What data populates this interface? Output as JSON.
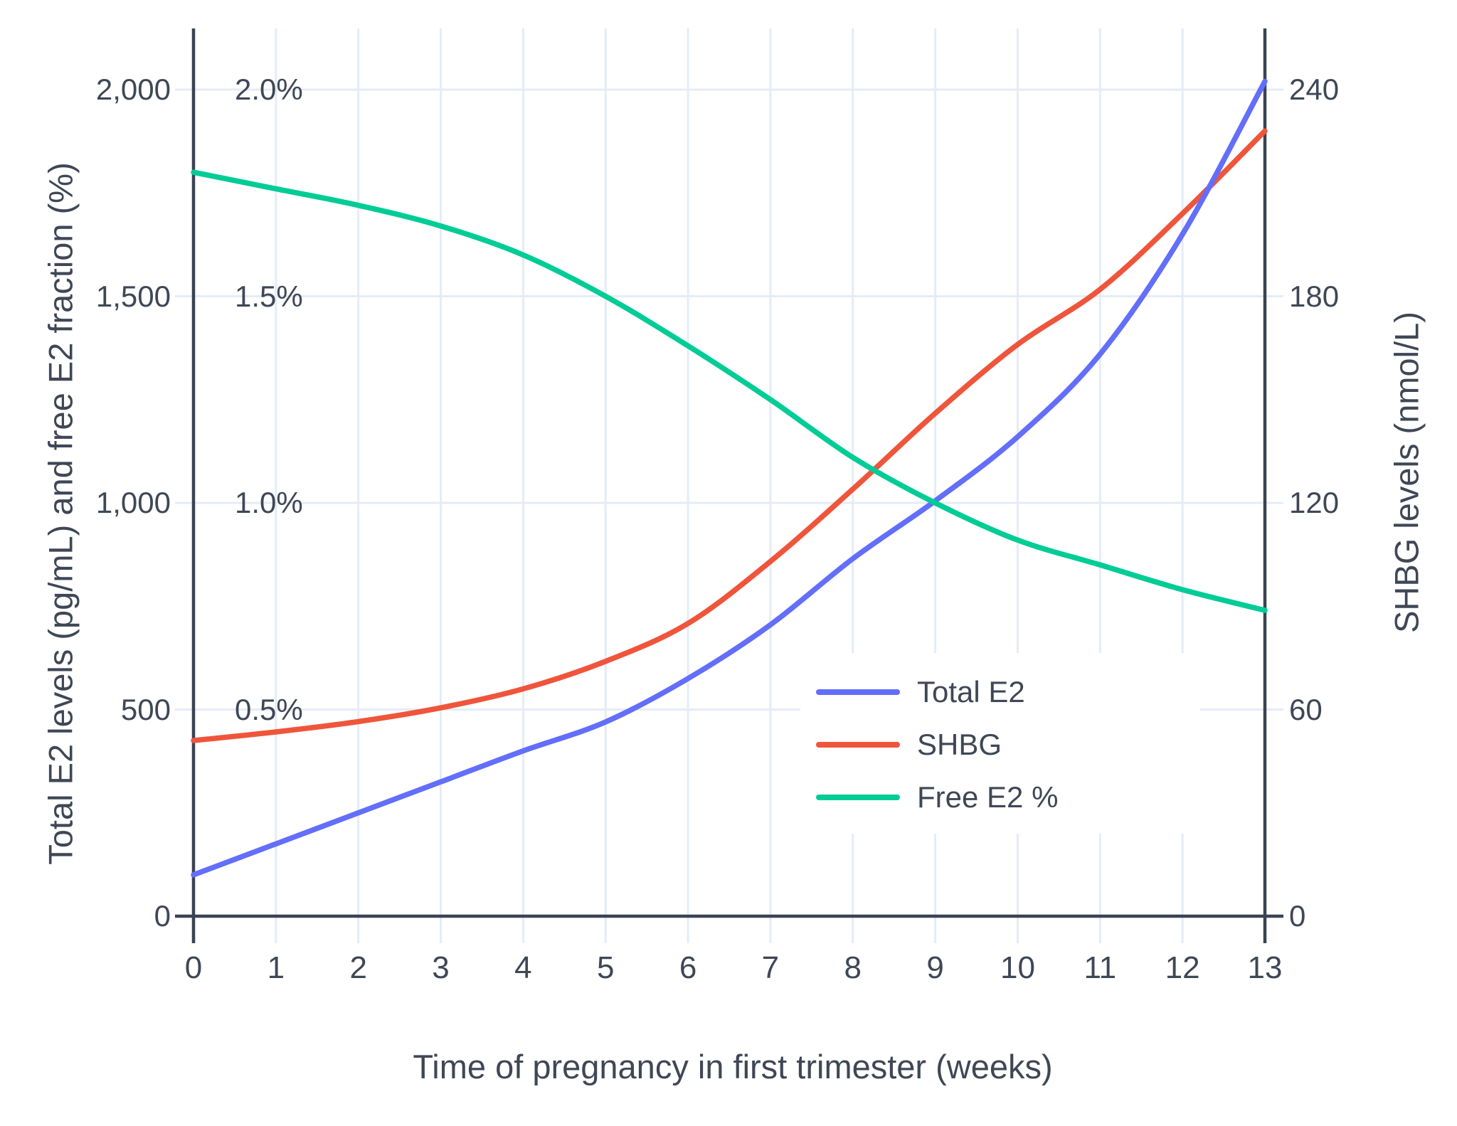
{
  "chart_data": {
    "type": "line",
    "title": "",
    "x": [
      0,
      1,
      2,
      3,
      4,
      5,
      6,
      7,
      8,
      9,
      10,
      11,
      12,
      13
    ],
    "xlabel": "Time of pregnancy in first trimester (weeks)",
    "series": [
      {
        "name": "Total E2",
        "units": "pg/mL",
        "axis": "left",
        "color": "#636EFA",
        "values": [
          100,
          175,
          250,
          325,
          400,
          470,
          575,
          705,
          865,
          1005,
          1160,
          1360,
          1650,
          2020
        ]
      },
      {
        "name": "SHBG",
        "units": "nmol/L",
        "axis": "right",
        "color": "#EF553B",
        "values": [
          51,
          53.5,
          56.5,
          60.5,
          66,
          74,
          85,
          103,
          124,
          146,
          166,
          182,
          204,
          228
        ]
      },
      {
        "name": "Free E2 %",
        "units": "%",
        "axis": "left_percent",
        "color": "#00CC96",
        "values": [
          1.8,
          1.76,
          1.72,
          1.67,
          1.6,
          1.5,
          1.38,
          1.25,
          1.11,
          1.0,
          0.91,
          0.85,
          0.79,
          0.74
        ]
      }
    ],
    "layout_hints": {
      "grid": true,
      "legend_position": "inside-right-middle",
      "left_range": [
        0,
        2000
      ],
      "right_range": [
        0,
        240
      ],
      "percent_range": [
        0,
        2.0
      ],
      "draw_order": [
        "SHBG",
        "Total E2",
        "Free E2 %"
      ]
    }
  },
  "axes": {
    "left": {
      "title": "Total E2 levels (pg/mL) and free E2 fraction (%)",
      "ticks": [
        "0",
        "500",
        "1,000",
        "1,500",
        "2,000"
      ],
      "tick_values": [
        0,
        500,
        1000,
        1500,
        2000
      ],
      "percent_ticks": [
        "0.5%",
        "1.0%",
        "1.5%",
        "2.0%"
      ],
      "percent_tick_values": [
        500,
        1000,
        1500,
        2000
      ]
    },
    "right": {
      "title": "SHBG levels (nmol/L)",
      "ticks": [
        "0",
        "60",
        "120",
        "180",
        "240"
      ],
      "tick_values": [
        0,
        60,
        120,
        180,
        240
      ]
    },
    "x": {
      "title": "Time of pregnancy in first trimester (weeks)",
      "ticks": [
        "0",
        "1",
        "2",
        "3",
        "4",
        "5",
        "6",
        "7",
        "8",
        "9",
        "10",
        "11",
        "12",
        "13"
      ],
      "tick_values": [
        0,
        1,
        2,
        3,
        4,
        5,
        6,
        7,
        8,
        9,
        10,
        11,
        12,
        13
      ]
    }
  },
  "legend": {
    "items": [
      {
        "label": "Total E2",
        "color": "#636EFA"
      },
      {
        "label": "SHBG",
        "color": "#EF553B"
      },
      {
        "label": "Free E2 %",
        "color": "#00CC96"
      }
    ]
  },
  "colors": {
    "grid": "#E5ECF6",
    "axis": "#3A4352",
    "text": "#3F4756",
    "background": "#FFFFFF",
    "total_e2": "#636EFA",
    "shbg": "#EF553B",
    "free_e2": "#00CC96"
  }
}
